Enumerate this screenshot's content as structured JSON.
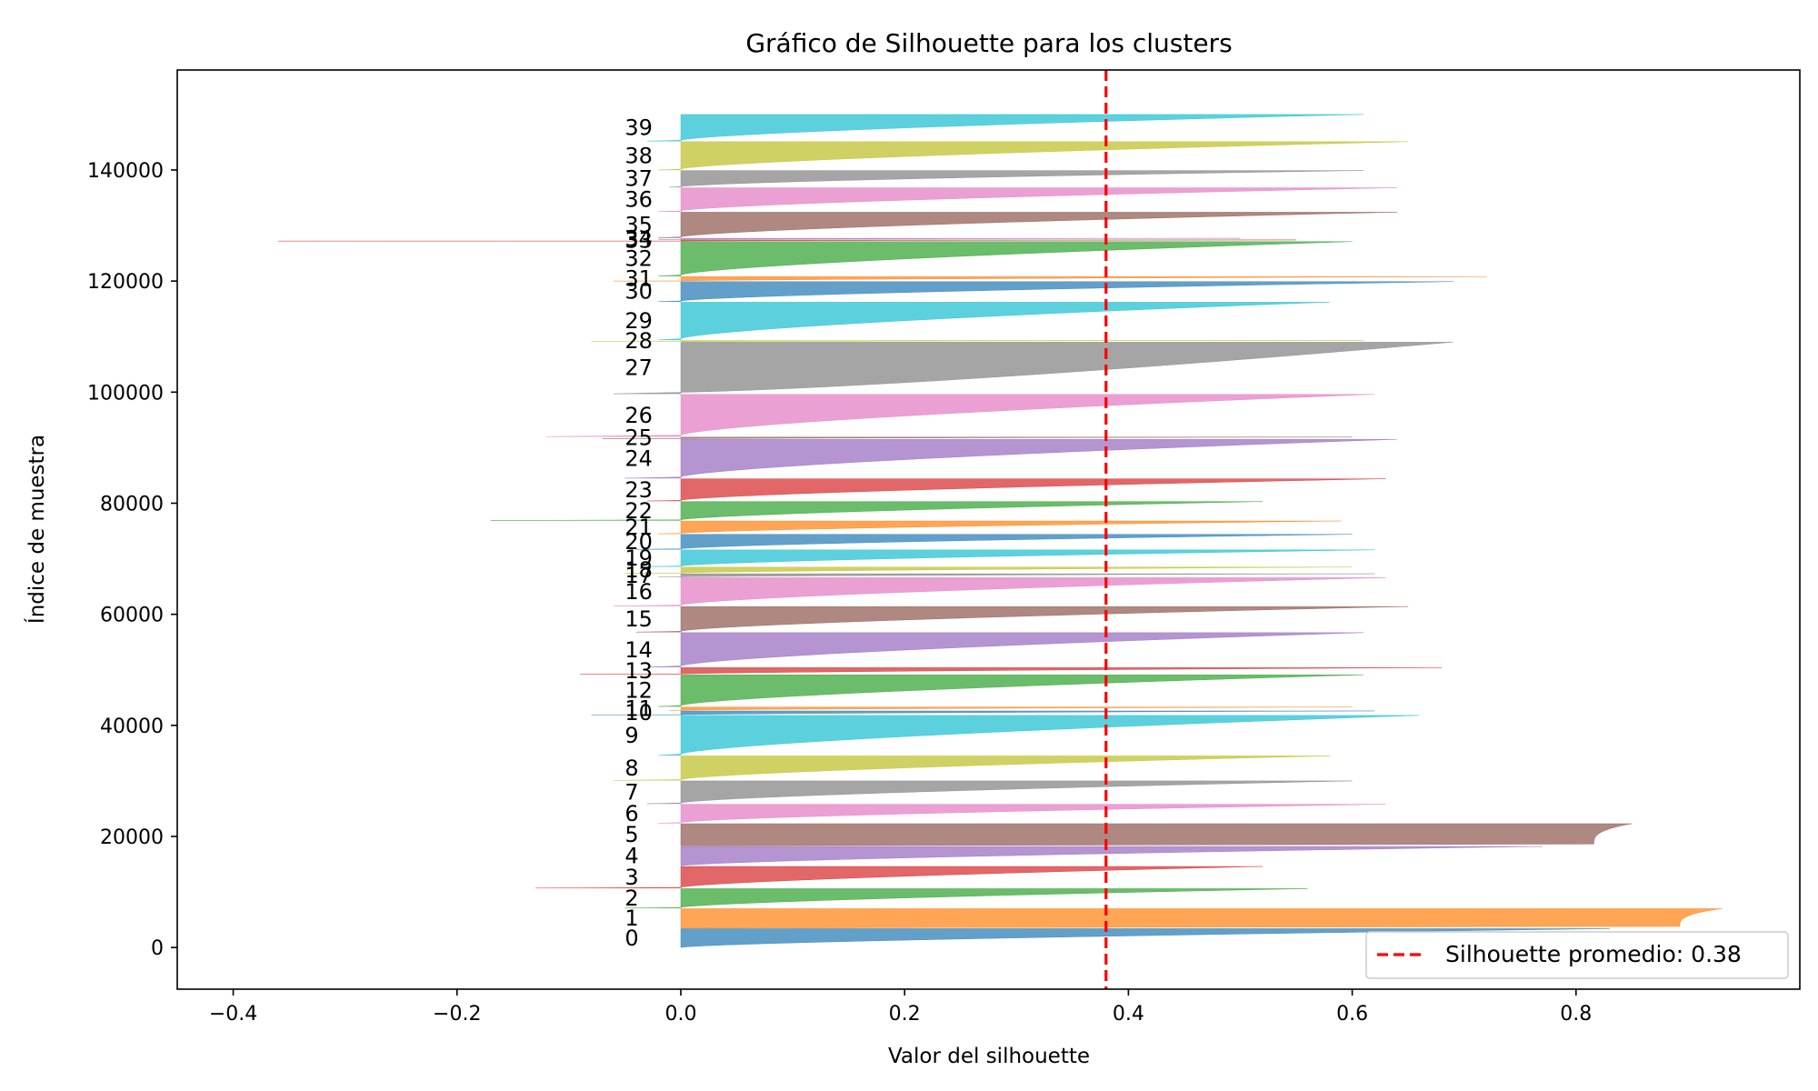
{
  "chart_data": {
    "type": "area",
    "title": "Gráfico de Silhouette para los clusters",
    "xlabel": "Valor del silhouette",
    "ylabel": "Índice de muestra",
    "xlim": [
      -0.45,
      1.0
    ],
    "ylim": [
      -7500,
      158000
    ],
    "xticks": [
      -0.4,
      -0.2,
      0.0,
      0.2,
      0.4,
      0.6,
      0.8
    ],
    "xtick_labels": [
      "−0.4",
      "−0.2",
      "0.0",
      "0.2",
      "0.4",
      "0.6",
      "0.8"
    ],
    "yticks": [
      0,
      20000,
      40000,
      60000,
      80000,
      100000,
      120000,
      140000
    ],
    "ytick_labels": [
      "0",
      "20000",
      "40000",
      "60000",
      "80000",
      "100000",
      "120000",
      "140000"
    ],
    "grid": false,
    "average_line": {
      "value": 0.38,
      "label": "Silhouette promedio: 0.38",
      "color": "#ff0000",
      "style": "dashed"
    },
    "legend_position": "lower-right",
    "clusters": [
      {
        "label": "0",
        "y_start": 0,
        "y_end": 3400,
        "max": 0.83,
        "min": 0.0,
        "shape": "gradual",
        "color": "#1f77b4"
      },
      {
        "label": "1",
        "y_start": 3500,
        "y_end": 7000,
        "max": 0.93,
        "min": 0.0,
        "shape": "flat",
        "color": "#ff7f0e"
      },
      {
        "label": "2",
        "y_start": 7100,
        "y_end": 10600,
        "max": 0.56,
        "min": -0.05,
        "shape": "gradual",
        "color": "#2ca02c"
      },
      {
        "label": "3",
        "y_start": 10700,
        "y_end": 14600,
        "max": 0.52,
        "min": -0.13,
        "shape": "gradual",
        "color": "#d62728"
      },
      {
        "label": "4",
        "y_start": 14700,
        "y_end": 18200,
        "max": 0.77,
        "min": 0.0,
        "shape": "gradual",
        "color": "#9467bd"
      },
      {
        "label": "5",
        "y_start": 18300,
        "y_end": 22300,
        "max": 0.85,
        "min": 0.0,
        "shape": "flat",
        "color": "#8c564b"
      },
      {
        "label": "6",
        "y_start": 22400,
        "y_end": 25800,
        "max": 0.63,
        "min": -0.02,
        "shape": "gradual",
        "color": "#e377c2"
      },
      {
        "label": "7",
        "y_start": 25900,
        "y_end": 30000,
        "max": 0.6,
        "min": -0.03,
        "shape": "gradual",
        "color": "#7f7f7f"
      },
      {
        "label": "8",
        "y_start": 30100,
        "y_end": 34500,
        "max": 0.58,
        "min": -0.06,
        "shape": "gradual",
        "color": "#bcbd22"
      },
      {
        "label": "9",
        "y_start": 34600,
        "y_end": 41800,
        "max": 0.66,
        "min": -0.02,
        "shape": "gradual",
        "color": "#17becf"
      },
      {
        "label": "10",
        "y_start": 41900,
        "y_end": 42600,
        "max": 0.62,
        "min": -0.08,
        "shape": "gradual",
        "color": "#1f77b4"
      },
      {
        "label": "11",
        "y_start": 42700,
        "y_end": 43300,
        "max": 0.6,
        "min": -0.01,
        "shape": "gradual",
        "color": "#ff7f0e"
      },
      {
        "label": "12",
        "y_start": 43400,
        "y_end": 49100,
        "max": 0.61,
        "min": -0.02,
        "shape": "gradual",
        "color": "#2ca02c"
      },
      {
        "label": "13",
        "y_start": 49200,
        "y_end": 50400,
        "max": 0.68,
        "min": -0.09,
        "shape": "gradual",
        "color": "#d62728"
      },
      {
        "label": "14",
        "y_start": 50500,
        "y_end": 56700,
        "max": 0.61,
        "min": -0.03,
        "shape": "gradual",
        "color": "#9467bd"
      },
      {
        "label": "15",
        "y_start": 56800,
        "y_end": 61400,
        "max": 0.65,
        "min": -0.04,
        "shape": "gradual",
        "color": "#8c564b"
      },
      {
        "label": "16",
        "y_start": 61500,
        "y_end": 66600,
        "max": 0.63,
        "min": -0.06,
        "shape": "gradual",
        "color": "#e377c2"
      },
      {
        "label": "17",
        "y_start": 66700,
        "y_end": 67300,
        "max": 0.62,
        "min": -0.02,
        "shape": "gradual",
        "color": "#7f7f7f"
      },
      {
        "label": "18",
        "y_start": 67400,
        "y_end": 68500,
        "max": 0.6,
        "min": -0.05,
        "shape": "gradual",
        "color": "#bcbd22"
      },
      {
        "label": "19",
        "y_start": 68600,
        "y_end": 71600,
        "max": 0.62,
        "min": -0.03,
        "shape": "gradual",
        "color": "#17becf"
      },
      {
        "label": "20",
        "y_start": 71700,
        "y_end": 74400,
        "max": 0.6,
        "min": -0.04,
        "shape": "gradual",
        "color": "#1f77b4"
      },
      {
        "label": "21",
        "y_start": 74500,
        "y_end": 76800,
        "max": 0.59,
        "min": -0.02,
        "shape": "gradual",
        "color": "#ff7f0e"
      },
      {
        "label": "22",
        "y_start": 76900,
        "y_end": 80300,
        "max": 0.52,
        "min": -0.17,
        "shape": "gradual",
        "color": "#2ca02c"
      },
      {
        "label": "23",
        "y_start": 80400,
        "y_end": 84400,
        "max": 0.63,
        "min": -0.03,
        "shape": "gradual",
        "color": "#d62728"
      },
      {
        "label": "24",
        "y_start": 84500,
        "y_end": 91500,
        "max": 0.64,
        "min": -0.05,
        "shape": "gradual",
        "color": "#9467bd"
      },
      {
        "label": "25",
        "y_start": 91600,
        "y_end": 91900,
        "max": 0.6,
        "min": -0.07,
        "shape": "gradual",
        "color": "#8c564b"
      },
      {
        "label": "26",
        "y_start": 92000,
        "y_end": 99600,
        "max": 0.62,
        "min": -0.12,
        "shape": "gradual",
        "color": "#e377c2"
      },
      {
        "label": "27",
        "y_start": 99700,
        "y_end": 109000,
        "max": 0.69,
        "min": -0.06,
        "shape": "convex",
        "color": "#7f7f7f"
      },
      {
        "label": "28",
        "y_start": 109100,
        "y_end": 109300,
        "max": 0.61,
        "min": -0.08,
        "shape": "gradual",
        "color": "#bcbd22"
      },
      {
        "label": "29",
        "y_start": 109400,
        "y_end": 116200,
        "max": 0.58,
        "min": -0.02,
        "shape": "gradual",
        "color": "#17becf"
      },
      {
        "label": "30",
        "y_start": 116300,
        "y_end": 119900,
        "max": 0.69,
        "min": -0.02,
        "shape": "gradual",
        "color": "#1f77b4"
      },
      {
        "label": "31",
        "y_start": 120000,
        "y_end": 120800,
        "max": 0.72,
        "min": -0.06,
        "shape": "gradual",
        "color": "#ff7f0e"
      },
      {
        "label": "32",
        "y_start": 120900,
        "y_end": 127100,
        "max": 0.6,
        "min": -0.02,
        "shape": "gradual",
        "color": "#2ca02c"
      },
      {
        "label": "33",
        "y_start": 127200,
        "y_end": 127400,
        "max": 0.55,
        "min": -0.36,
        "shape": "gradual",
        "color": "#d62728"
      },
      {
        "label": "34",
        "y_start": 127500,
        "y_end": 127700,
        "max": 0.5,
        "min": -0.02,
        "shape": "gradual",
        "color": "#9467bd"
      },
      {
        "label": "35",
        "y_start": 127800,
        "y_end": 132400,
        "max": 0.64,
        "min": -0.02,
        "shape": "gradual",
        "color": "#8c564b"
      },
      {
        "label": "36",
        "y_start": 132500,
        "y_end": 136800,
        "max": 0.64,
        "min": -0.02,
        "shape": "gradual",
        "color": "#e377c2"
      },
      {
        "label": "37",
        "y_start": 136900,
        "y_end": 139900,
        "max": 0.61,
        "min": -0.01,
        "shape": "gradual",
        "color": "#7f7f7f"
      },
      {
        "label": "38",
        "y_start": 140000,
        "y_end": 145100,
        "max": 0.65,
        "min": -0.02,
        "shape": "gradual",
        "color": "#bcbd22"
      },
      {
        "label": "39",
        "y_start": 145200,
        "y_end": 150000,
        "max": 0.61,
        "min": -0.03,
        "shape": "gradual",
        "color": "#17becf"
      }
    ]
  }
}
